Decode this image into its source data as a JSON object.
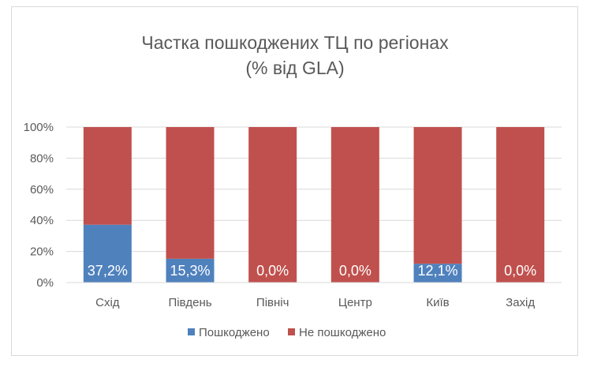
{
  "chart_data": {
    "type": "bar",
    "stacked": "percent",
    "title_line1": "Частка пошкоджених ТЦ по регіонах",
    "title_line2": "(% від GLA)",
    "categories": [
      "Схід",
      "Південь",
      "Північ",
      "Центр",
      "Київ",
      "Захід"
    ],
    "series": [
      {
        "name": "Пошкоджено",
        "color": "#4f81bd",
        "values": [
          37.2,
          15.3,
          0.0,
          0.0,
          12.1,
          0.0
        ]
      },
      {
        "name": "Не пошкоджено",
        "color": "#c0504d",
        "values": [
          62.8,
          84.7,
          100.0,
          100.0,
          87.9,
          100.0
        ]
      }
    ],
    "data_labels": [
      "37,2%",
      "15,3%",
      "0,0%",
      "0,0%",
      "12,1%",
      "0,0%"
    ],
    "y_ticks": [
      "0%",
      "20%",
      "40%",
      "60%",
      "80%",
      "100%"
    ],
    "ylim": [
      0,
      100
    ],
    "grid": true,
    "legend": "bottom"
  }
}
